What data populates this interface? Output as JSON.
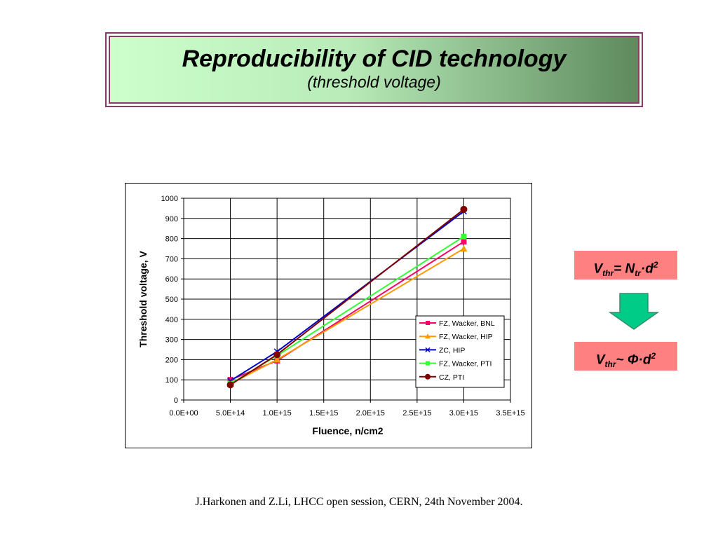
{
  "slide": {
    "title": "Reproducibility of CID technology",
    "subtitle": "(threshold voltage)",
    "formula1": {
      "v": "V",
      "v_sub": "thr",
      "mid": "= N",
      "n_sub": "tr",
      "dot": "·d",
      "sup": "2"
    },
    "formula2": {
      "v": "V",
      "v_sub": "thr",
      "mid": "~ Φ",
      "dot": "·d",
      "sup": "2"
    },
    "citation": "J.Harkonen and Z.Li, LHCC open session, CERN, 24th November 2004.",
    "colors": {
      "formula_bg": "#ff8080",
      "arrow": "#00cc88",
      "title_border": "#8a3a6a"
    }
  },
  "chart_data": {
    "type": "line",
    "xlabel": "Fluence, n/cm2",
    "ylabel": "Threshold voltage, V",
    "xlim": [
      0,
      3500000000000000.0
    ],
    "ylim": [
      0,
      1000
    ],
    "x_ticks": [
      "0.0E+00",
      "5.0E+14",
      "1.0E+15",
      "1.5E+15",
      "2.0E+15",
      "2.5E+15",
      "3.0E+15",
      "3.5E+15"
    ],
    "y_ticks": [
      "0",
      "100",
      "200",
      "300",
      "400",
      "500",
      "600",
      "700",
      "800",
      "900",
      "1000"
    ],
    "grid": true,
    "legend_position": "right",
    "series": [
      {
        "name": "FZ, Wacker, BNL",
        "color": "#ff0066",
        "marker": "square",
        "x": [
          500000000000000.0,
          1000000000000000.0,
          3000000000000000.0
        ],
        "y": [
          100,
          195,
          785
        ]
      },
      {
        "name": "FZ, Wacker, HIP",
        "color": "#ff9900",
        "marker": "triangle",
        "x": [
          500000000000000.0,
          1000000000000000.0,
          3000000000000000.0
        ],
        "y": [
          80,
          200,
          750
        ]
      },
      {
        "name": "ZC, HIP",
        "color": "#0000cc",
        "marker": "x",
        "x": [
          500000000000000.0,
          1000000000000000.0,
          3000000000000000.0
        ],
        "y": [
          95,
          240,
          935
        ]
      },
      {
        "name": "FZ, Wacker, PTI",
        "color": "#33ff33",
        "marker": "square",
        "x": [
          500000000000000.0,
          1000000000000000.0,
          3000000000000000.0
        ],
        "y": [
          80,
          220,
          810
        ]
      },
      {
        "name": "CZ, PTI",
        "color": "#800000",
        "marker": "circle",
        "x": [
          500000000000000.0,
          1000000000000000.0,
          3000000000000000.0
        ],
        "y": [
          75,
          225,
          945
        ]
      }
    ]
  }
}
